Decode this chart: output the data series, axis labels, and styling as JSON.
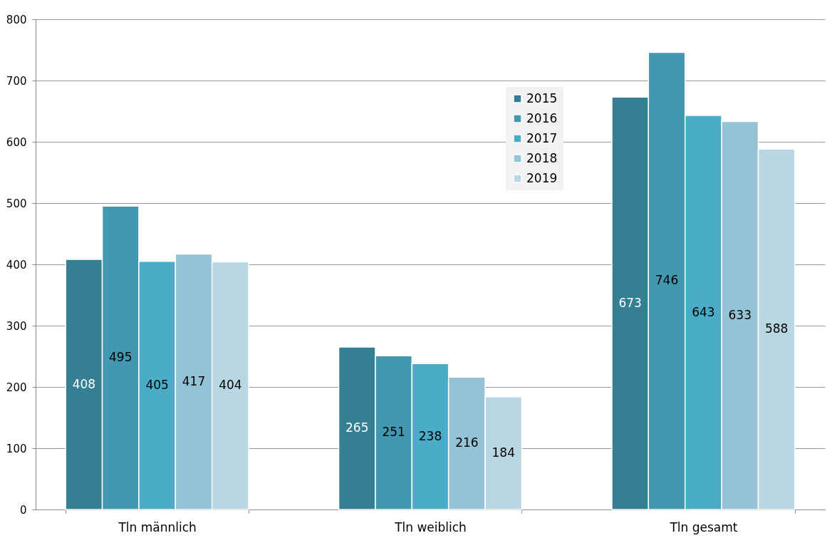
{
  "chart_data": {
    "type": "bar",
    "categories": [
      "Tln  männlich",
      "Tln weiblich",
      "Tln gesamt"
    ],
    "series": [
      {
        "name": "2015",
        "color": "#357f92",
        "values": [
          408,
          265,
          673
        ]
      },
      {
        "name": "2016",
        "color": "#4198b0",
        "values": [
          495,
          251,
          746
        ]
      },
      {
        "name": "2017",
        "color": "#4aacc6",
        "values": [
          405,
          238,
          643
        ]
      },
      {
        "name": "2018",
        "color": "#93c3d5",
        "values": [
          417,
          216,
          633
        ]
      },
      {
        "name": "2019",
        "color": "#b9d7e2",
        "values": [
          404,
          184,
          588
        ]
      }
    ],
    "ylim": [
      0,
      800
    ],
    "yticks": [
      0,
      100,
      200,
      300,
      400,
      500,
      600,
      700,
      800
    ],
    "grid": "y",
    "legend": "top right",
    "data_labels": true
  }
}
